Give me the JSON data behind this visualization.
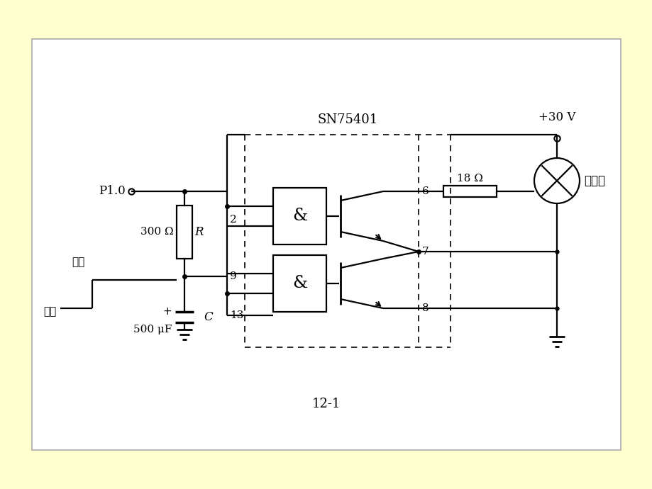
{
  "bg_color": "#ffffd0",
  "panel_color": "#ffffff",
  "line_color": "#000000",
  "title": "12-1",
  "sn_label": "SN75401",
  "p1_label": "P1.0",
  "r_label": "300 Ω",
  "r_name": "R",
  "c_label": "500 μF",
  "c_name": "C",
  "res18_label": "18 Ω",
  "lamp_label": "白炽灯",
  "vcc_label": "+30 V",
  "open_label": "开启",
  "close_label": "关闭",
  "pin2": "2",
  "pin9": "9",
  "pin13": "13",
  "pin6": "6",
  "pin7": "7",
  "pin8": "8"
}
